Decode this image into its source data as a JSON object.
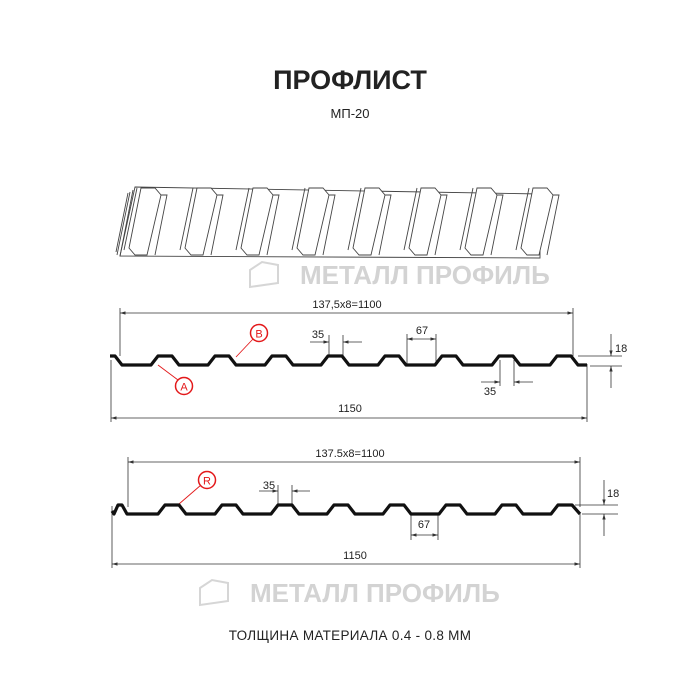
{
  "title": "ПРОФЛИСТ",
  "subtitle": "МП-20",
  "watermark": "МЕТАЛЛ ПРОФИЛЬ",
  "footer": "ТОЛЩИНА МАТЕРИАЛА 0.4 - 0.8 ММ",
  "colors": {
    "profile": "#111111",
    "callout": "#e3191b",
    "watermark": "#d0d0d0"
  },
  "profile1": {
    "pitch_dim": "137,5x8=1100",
    "width_dim": "1150",
    "height_dim": "18",
    "ridge_dim": "35",
    "valley_dim": "67",
    "ridge_dim_lower": "35",
    "callout_a": "A",
    "callout_b": "B"
  },
  "profile2": {
    "pitch_dim": "137.5x8=1100",
    "width_dim": "1150",
    "height_dim": "18",
    "ridge_dim": "35",
    "valley_dim": "67",
    "callout_r": "R"
  }
}
